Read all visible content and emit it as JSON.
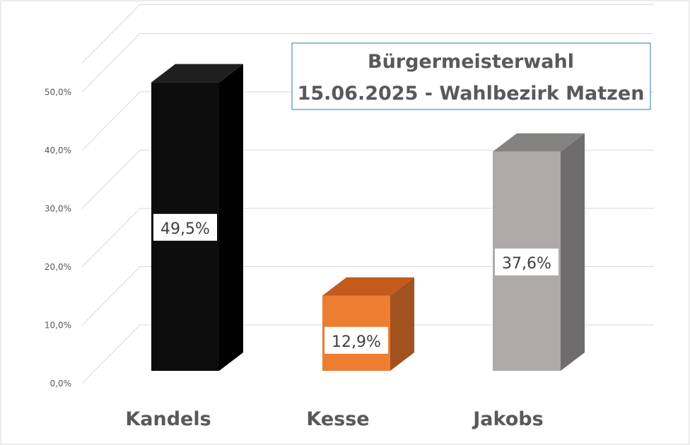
{
  "chart_data": {
    "type": "bar",
    "title_lines": [
      "Bürgermeisterwahl",
      "15.06.2025 - Wahlbezirk Matzen"
    ],
    "categories": [
      "Kandels",
      "Kesse",
      "Jakobs"
    ],
    "values": [
      49.5,
      12.9,
      37.6
    ],
    "value_labels": [
      "49,5%",
      "12,9%",
      "37,6%"
    ],
    "y_ticks": [
      0,
      10,
      20,
      30,
      40,
      50
    ],
    "y_tick_labels": [
      "0,0%",
      "10,0%",
      "20,0%",
      "30,0%",
      "40,0%",
      "50,0%"
    ],
    "ylim": [
      0,
      55
    ],
    "grid": true,
    "style": "3d-column",
    "colors": {
      "Kandels": {
        "front": "#0d0d0d",
        "top": "#1f1f1f",
        "side": "#000000"
      },
      "Kesse": {
        "front": "#ed7d31",
        "top": "#c45a1c",
        "side": "#a1521f"
      },
      "Jakobs": {
        "front": "#aeaaaa",
        "top": "#858282",
        "side": "#6e6c6c"
      },
      "grid": "#d9d9d9",
      "title_border": "#2e75b6"
    }
  }
}
